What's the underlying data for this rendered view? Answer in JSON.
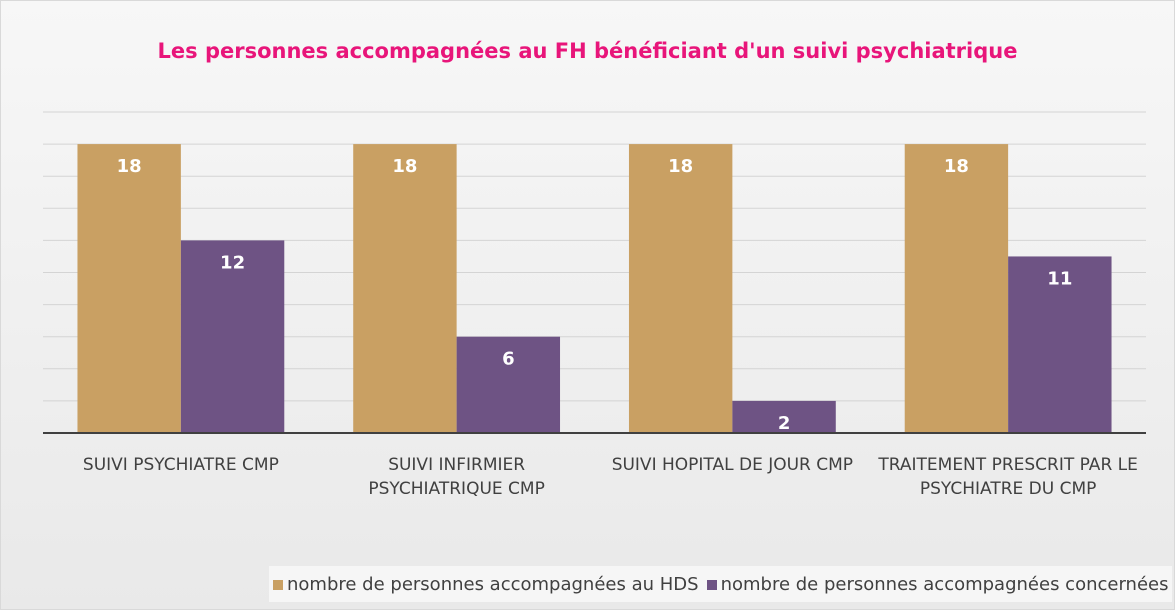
{
  "chart_data": {
    "type": "bar",
    "title": "Les personnes accompagnées au FH bénéficiant d'un suivi psychiatrique",
    "categories": [
      "SUIVI PSYCHIATRE CMP",
      "SUIVI INFIRMIER PSYCHIATRIQUE CMP",
      "SUIVI HOPITAL DE JOUR CMP",
      "TRAITEMENT PRESCRIT PAR LE PSYCHIATRE DU CMP"
    ],
    "series": [
      {
        "name": "nombre de personnes accompagnées au HDS",
        "color": "#c9a063",
        "values": [
          18,
          18,
          18,
          18
        ]
      },
      {
        "name": "nombre de personnes accompagnées concernées",
        "color": "#6e5384",
        "values": [
          12,
          6,
          2,
          11
        ]
      }
    ],
    "ylim": [
      0,
      20
    ],
    "yticks": [
      0,
      2,
      4,
      6,
      8,
      10,
      12,
      14,
      16,
      18,
      20
    ],
    "grid": true,
    "legend": "bottom"
  }
}
